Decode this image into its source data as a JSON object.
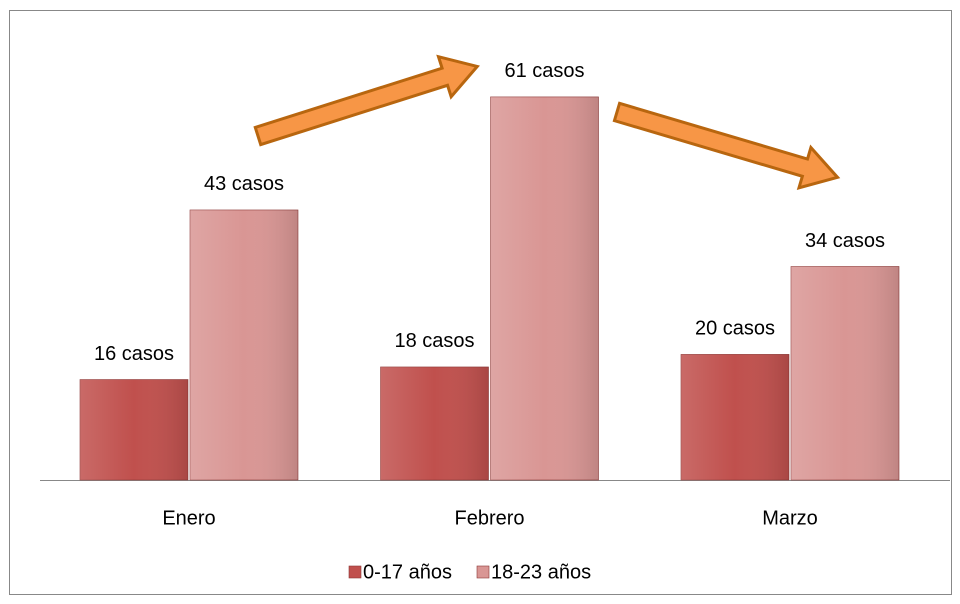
{
  "chart_data": {
    "type": "bar",
    "categories": [
      "Enero",
      "Febrero",
      "Marzo"
    ],
    "series": [
      {
        "name": "0-17 años",
        "color": "#c0504d",
        "values": [
          16,
          18,
          20
        ],
        "value_labels": [
          "16 casos",
          "18 casos",
          "20 casos"
        ]
      },
      {
        "name": "18-23 años",
        "color": "#d99694",
        "values": [
          43,
          61,
          34
        ],
        "value_labels": [
          "43 casos",
          "61 casos",
          "34 casos"
        ]
      }
    ],
    "legend": "bottom"
  }
}
